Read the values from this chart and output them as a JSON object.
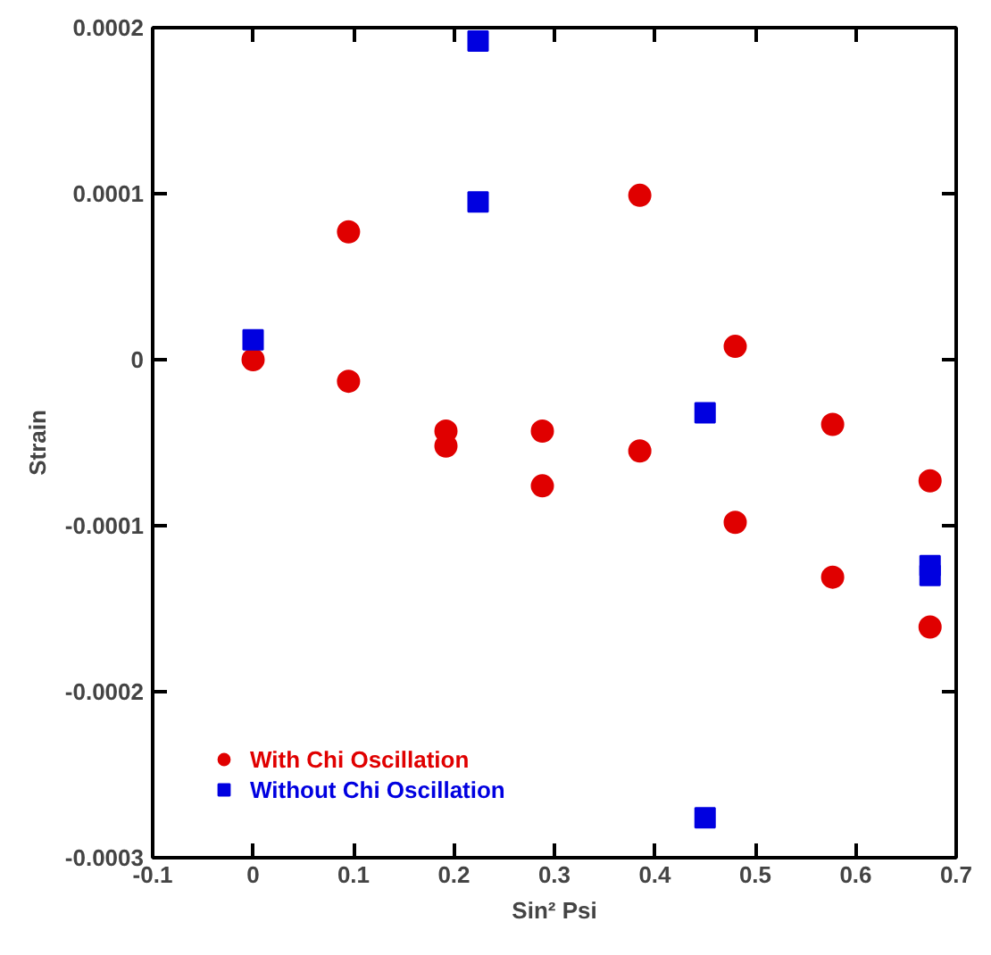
{
  "chart_data": {
    "type": "scatter",
    "xlabel": "Sin² Psi",
    "ylabel": "Strain",
    "xlim": [
      -0.1,
      0.7
    ],
    "xticks": [
      -0.1,
      0,
      0.1,
      0.2,
      0.3,
      0.4,
      0.5,
      0.6,
      0.7
    ],
    "ylim": [
      -0.0003,
      0.0002
    ],
    "yticks": [
      -0.0003,
      -0.0002,
      -0.0001,
      0,
      0.0001,
      0.0002
    ],
    "grid": false,
    "legend": "bottom left",
    "series": [
      {
        "name": "With Chi Oscillation",
        "color": "#e00000",
        "marker": "circle",
        "x": [
          0,
          0.095,
          0.095,
          0.192,
          0.192,
          0.288,
          0.288,
          0.385,
          0.385,
          0.48,
          0.48,
          0.577,
          0.577,
          0.674,
          0.674
        ],
        "values": [
          0,
          7.7e-05,
          -1.3e-05,
          -4.3e-05,
          -5.2e-05,
          -4.3e-05,
          -7.6e-05,
          9.9e-05,
          -5.5e-05,
          8e-06,
          -9.8e-05,
          -3.9e-05,
          -0.000131,
          -7.3e-05,
          -0.000161
        ]
      },
      {
        "name": "Without Chi Oscillation",
        "color": "#0000e0",
        "marker": "square",
        "x": [
          0,
          0.224,
          0.224,
          0.45,
          0.45,
          0.674,
          0.674
        ],
        "values": [
          1.2e-05,
          0.000192,
          9.5e-05,
          -3.2e-05,
          -0.000276,
          -0.000124,
          -0.00013
        ]
      }
    ]
  }
}
